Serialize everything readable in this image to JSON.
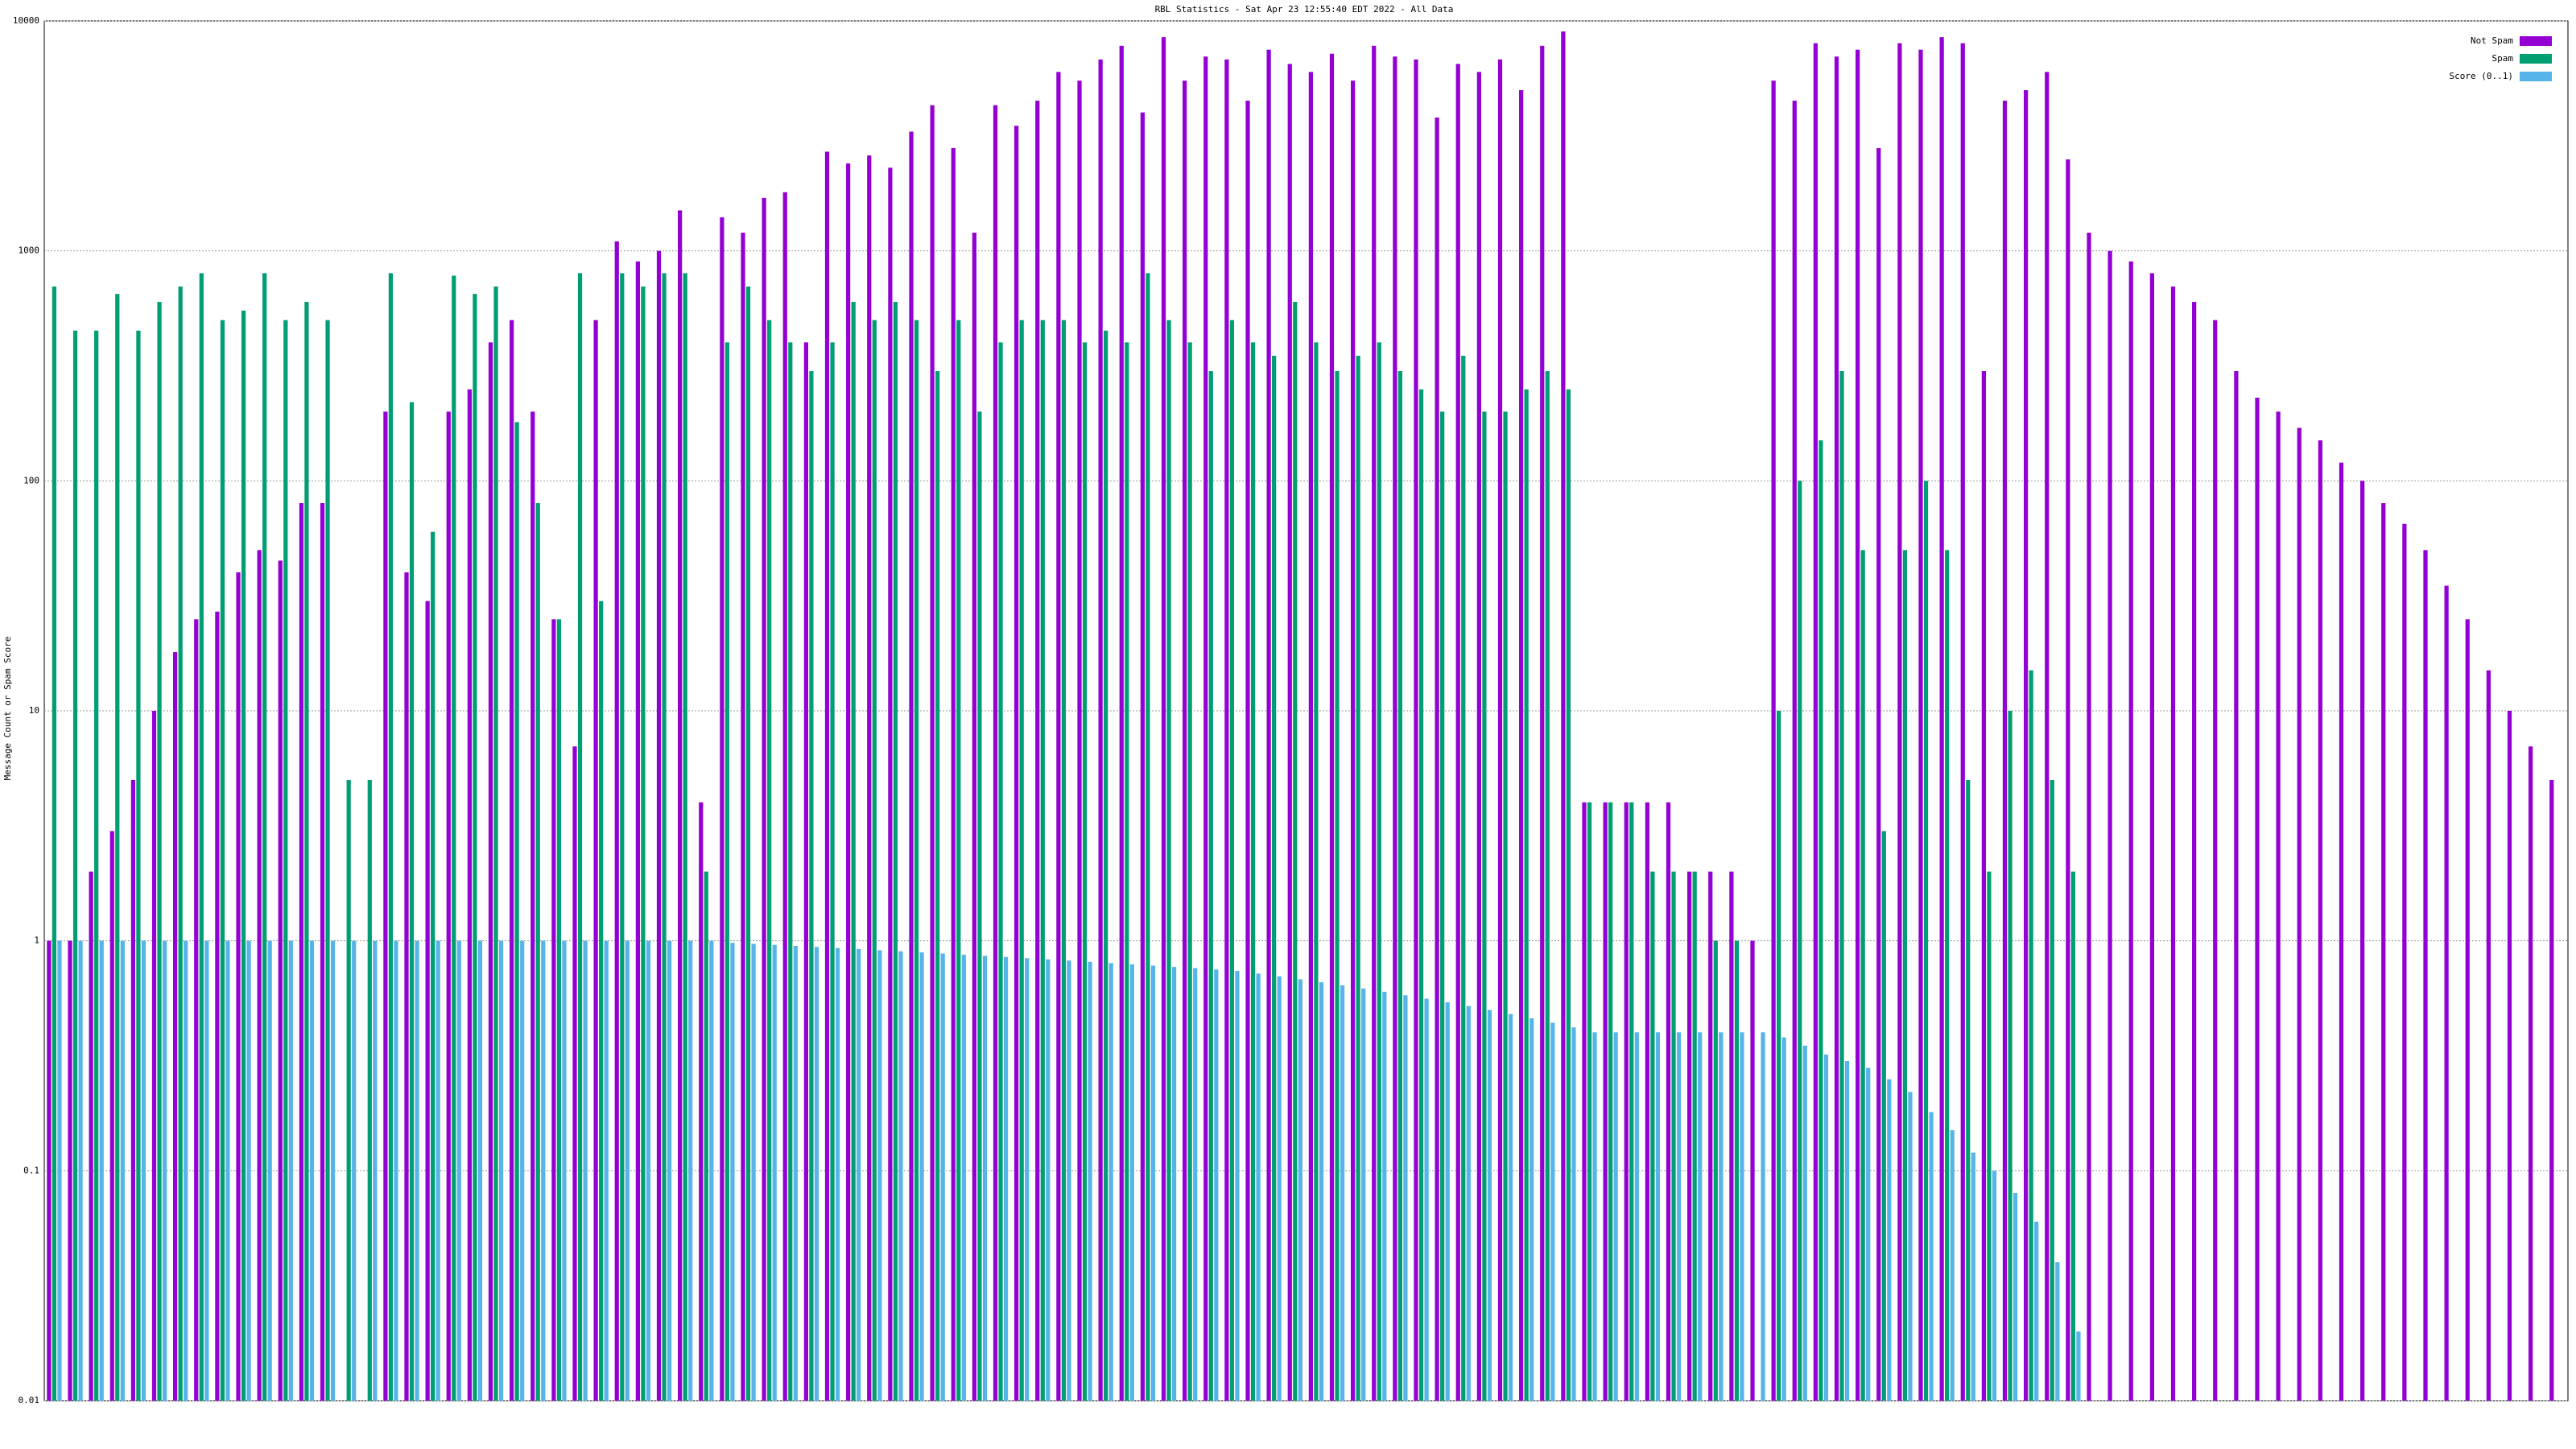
{
  "chart_data": {
    "type": "bar",
    "title": "RBL Statistics - Sat Apr 23 12:55:40 EDT 2022 - All Data",
    "y_label": "Message Count or Spam Score",
    "log_scale": true,
    "grid": true,
    "legend": "top-right",
    "ylim": [
      0.01,
      10000
    ],
    "yticks": [
      0.01,
      0.1,
      1,
      10,
      100,
      1000,
      10000
    ],
    "categories": [
      null,
      null,
      null,
      null,
      null,
      null,
      null,
      null,
      null,
      null,
      null,
      null,
      null,
      null,
      null,
      null,
      null,
      null,
      null,
      null,
      null,
      null,
      null,
      null,
      null,
      null,
      null,
      null,
      null,
      null,
      null,
      null,
      null,
      null,
      null,
      null,
      null,
      null,
      null,
      null,
      null,
      null,
      null,
      null,
      null,
      null,
      null,
      null,
      null,
      null,
      null,
      null,
      null,
      null,
      null,
      null,
      null,
      null,
      null,
      null,
      null,
      null,
      null,
      null,
      null,
      null,
      null,
      null,
      null,
      null,
      null,
      null,
      null,
      null,
      null,
      null,
      null,
      null,
      null,
      null,
      null,
      null,
      null,
      null,
      null,
      null,
      null,
      null,
      null,
      null,
      null,
      null,
      null,
      null,
      null,
      null,
      null,
      null,
      null,
      null,
      null,
      null,
      null,
      null,
      null,
      null,
      null,
      null,
      null,
      null,
      null,
      null,
      null,
      null,
      null,
      null,
      null,
      null,
      null,
      null
    ],
    "series": [
      {
        "name": "Not Spam",
        "color": "#9400d3",
        "values": [
          1,
          1,
          2,
          3,
          5,
          10,
          18,
          25,
          27,
          40,
          50,
          45,
          80,
          80,
          null,
          null,
          200,
          40,
          30,
          200,
          250,
          400,
          500,
          200,
          25,
          7,
          500,
          1100,
          900,
          1000,
          1500,
          4,
          1400,
          1200,
          1700,
          1800,
          400,
          2700,
          2400,
          2600,
          2300,
          3300,
          4300,
          2800,
          1200,
          4300,
          3500,
          4500,
          6000,
          5500,
          6800,
          7800,
          4000,
          8500,
          5500,
          7000,
          6800,
          4500,
          7500,
          6500,
          6000,
          7200,
          5500,
          7800,
          7000,
          6800,
          3800,
          6500,
          6000,
          6800,
          5000,
          7800,
          9000,
          4,
          4,
          4,
          4,
          4,
          2,
          2,
          2,
          1,
          5500,
          4500,
          8000,
          7000,
          7500,
          2800,
          8000,
          7500,
          8500,
          8000,
          300,
          4500,
          5000,
          6000,
          2500,
          1200,
          1000,
          900,
          800,
          700,
          600,
          500,
          300,
          230,
          200,
          170,
          150,
          120,
          100,
          80,
          65,
          50,
          35,
          25,
          15,
          10,
          7,
          5
        ]
      },
      {
        "name": "Spam",
        "color": "#009e73",
        "values": [
          700,
          450,
          450,
          650,
          450,
          600,
          700,
          800,
          500,
          550,
          800,
          500,
          600,
          500,
          5,
          5,
          800,
          220,
          60,
          780,
          650,
          700,
          180,
          80,
          25,
          800,
          30,
          800,
          700,
          800,
          800,
          2,
          400,
          700,
          500,
          400,
          300,
          400,
          600,
          500,
          600,
          500,
          300,
          500,
          200,
          400,
          500,
          500,
          500,
          400,
          450,
          400,
          800,
          500,
          400,
          300,
          500,
          400,
          350,
          600,
          400,
          300,
          350,
          400,
          300,
          250,
          200,
          350,
          200,
          200,
          250,
          300,
          250,
          4,
          4,
          4,
          2,
          2,
          2,
          1,
          1,
          null,
          10,
          100,
          150,
          300,
          50,
          3,
          50,
          100,
          50,
          5,
          2,
          10,
          15,
          5,
          2,
          null,
          null,
          null,
          null,
          null,
          null,
          null,
          null,
          null,
          null,
          null,
          null,
          null,
          null,
          null,
          null,
          null,
          null,
          null,
          null,
          null,
          null,
          null
        ]
      },
      {
        "name": "Score (0..1)",
        "color": "#56b4e9",
        "values": [
          1,
          1,
          1,
          1,
          1,
          1,
          1,
          1,
          1,
          1,
          1,
          1,
          1,
          1,
          1,
          1,
          1,
          1,
          1,
          1,
          1,
          1,
          1,
          1,
          1,
          1,
          1,
          1,
          1,
          1,
          1,
          1,
          0.98,
          0.97,
          0.96,
          0.95,
          0.94,
          0.93,
          0.92,
          0.91,
          0.9,
          0.89,
          0.88,
          0.87,
          0.86,
          0.85,
          0.84,
          0.83,
          0.82,
          0.81,
          0.8,
          0.79,
          0.78,
          0.77,
          0.76,
          0.75,
          0.74,
          0.72,
          0.7,
          0.68,
          0.66,
          0.64,
          0.62,
          0.6,
          0.58,
          0.56,
          0.54,
          0.52,
          0.5,
          0.48,
          0.46,
          0.44,
          0.42,
          0.4,
          0.4,
          0.4,
          0.4,
          0.4,
          0.4,
          0.4,
          0.4,
          0.4,
          0.38,
          0.35,
          0.32,
          0.3,
          0.28,
          0.25,
          0.22,
          0.18,
          0.15,
          0.12,
          0.1,
          0.08,
          0.06,
          0.04,
          0.02,
          null,
          null,
          null,
          null,
          null,
          null,
          null,
          null,
          null,
          null,
          null,
          null,
          null,
          null,
          null,
          null,
          null,
          null,
          null,
          null,
          null,
          null,
          null
        ]
      }
    ]
  }
}
